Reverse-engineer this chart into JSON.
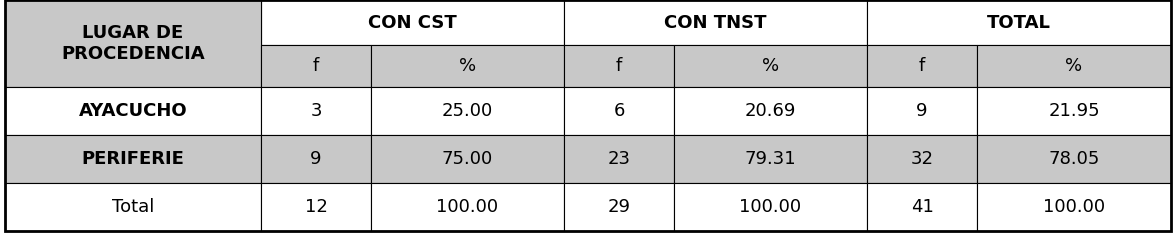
{
  "col_headers_top": [
    "CON CST",
    "CON TNST",
    "TOTAL"
  ],
  "col_headers_sub": [
    "f",
    "%",
    "f",
    "%",
    "f",
    "%"
  ],
  "row_label_header": "LUGAR DE\nPROCEDENCIA",
  "rows": [
    {
      "label": "AYACUCHO",
      "values": [
        "3",
        "25.00",
        "6",
        "20.69",
        "9",
        "21.95"
      ],
      "bg": "#ffffff",
      "label_bold": true,
      "val_bold": false
    },
    {
      "label": "PERIFERIE",
      "values": [
        "9",
        "75.00",
        "23",
        "79.31",
        "32",
        "78.05"
      ],
      "bg": "#c8c8c8",
      "label_bold": true,
      "val_bold": false
    },
    {
      "label": "Total",
      "values": [
        "12",
        "100.00",
        "29",
        "100.00",
        "41",
        "100.00"
      ],
      "bg": "#ffffff",
      "label_bold": false,
      "val_bold": false
    }
  ],
  "gray_bg": "#c8c8c8",
  "white_bg": "#ffffff",
  "figsize": [
    11.76,
    2.43
  ],
  "dpi": 100,
  "font_size_header": 13,
  "font_size_data": 13
}
